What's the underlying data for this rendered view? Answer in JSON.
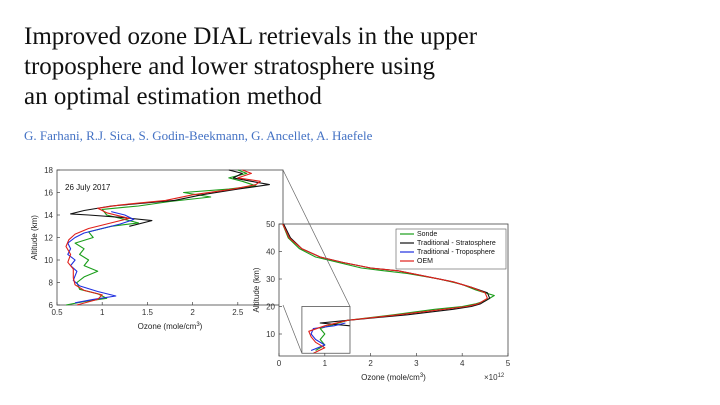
{
  "slide": {
    "title_lines": [
      "Improved ozone DIAL retrievals in the upper",
      "troposphere and lower stratosphere using",
      "an optimal estimation method"
    ],
    "authors": "G. Farhani, R.J. Sica, S. Godin-Beekmann, G. Ancellet, A. Haefele"
  },
  "colors": {
    "Sonde": "#1a9e1a",
    "Traditional - Stratosphere": "#111111",
    "Traditional - Troposphere": "#1f2fe0",
    "OEM": "#e0201a",
    "title": "#111111",
    "authors": "#4472c4"
  },
  "chart_data": [
    {
      "type": "line",
      "annotation": "26 July 2017",
      "xlabel": "Ozone (mole/cm",
      "xlabel_sup": "3",
      "xlabel_end": ")",
      "ylabel": "Altitude (km)",
      "xlim": [
        0.5,
        3.0
      ],
      "ylim": [
        6,
        18
      ],
      "xticks": [
        0.5,
        1,
        1.5,
        2,
        2.5
      ],
      "xtick_labels": [
        "0.5",
        "1",
        "1.5",
        "2",
        "2.5"
      ],
      "yticks": [
        6,
        8,
        10,
        12,
        14,
        16,
        18
      ],
      "ytick_labels": [
        "6",
        "8",
        "10",
        "12",
        "14",
        "16",
        "18"
      ],
      "series": [
        {
          "name": "Sonde",
          "points": [
            [
              0.6,
              6.0
            ],
            [
              0.8,
              6.3
            ],
            [
              1.05,
              6.6
            ],
            [
              0.95,
              7.0
            ],
            [
              0.75,
              7.4
            ],
            [
              0.72,
              8.0
            ],
            [
              0.8,
              8.5
            ],
            [
              0.95,
              9.0
            ],
            [
              0.8,
              9.5
            ],
            [
              0.85,
              10.0
            ],
            [
              0.75,
              10.5
            ],
            [
              0.8,
              11.0
            ],
            [
              0.7,
              11.5
            ],
            [
              0.9,
              12.0
            ],
            [
              0.85,
              12.5
            ],
            [
              1.1,
              13.0
            ],
            [
              1.4,
              13.3
            ],
            [
              1.25,
              13.6
            ],
            [
              1.05,
              14.0
            ],
            [
              1.0,
              14.5
            ],
            [
              1.4,
              14.8
            ],
            [
              1.75,
              15.2
            ],
            [
              2.2,
              15.6
            ],
            [
              1.9,
              16.0
            ],
            [
              2.4,
              16.3
            ],
            [
              2.7,
              16.6
            ],
            [
              2.55,
              17.0
            ],
            [
              2.4,
              17.3
            ],
            [
              2.6,
              17.7
            ],
            [
              2.5,
              18.0
            ]
          ]
        },
        {
          "name": "Traditional - Stratosphere",
          "points": [
            [
              1.3,
              13.0
            ],
            [
              1.55,
              13.5
            ],
            [
              1.2,
              13.8
            ],
            [
              0.85,
              14.0
            ],
            [
              0.65,
              14.1
            ],
            [
              0.8,
              14.4
            ],
            [
              1.1,
              14.8
            ],
            [
              1.8,
              15.3
            ],
            [
              2.1,
              15.8
            ],
            [
              2.5,
              16.3
            ],
            [
              2.85,
              16.7
            ],
            [
              2.65,
              17.0
            ],
            [
              2.45,
              17.3
            ],
            [
              2.55,
              17.7
            ],
            [
              2.4,
              18.0
            ]
          ]
        },
        {
          "name": "Traditional - Troposphere",
          "points": [
            [
              0.7,
              6.2
            ],
            [
              0.9,
              6.5
            ],
            [
              1.15,
              6.8
            ],
            [
              0.95,
              7.2
            ],
            [
              0.75,
              7.7
            ],
            [
              0.68,
              8.2
            ],
            [
              0.72,
              9.0
            ],
            [
              0.65,
              9.5
            ],
            [
              0.7,
              10.0
            ],
            [
              0.62,
              10.5
            ],
            [
              0.65,
              11.0
            ],
            [
              0.62,
              11.5
            ],
            [
              0.7,
              12.0
            ],
            [
              0.8,
              12.4
            ],
            [
              1.0,
              12.8
            ],
            [
              1.2,
              13.2
            ],
            [
              1.35,
              13.6
            ],
            [
              1.25,
              14.0
            ],
            [
              1.1,
              14.3
            ]
          ]
        },
        {
          "name": "OEM",
          "points": [
            [
              0.72,
              6.0
            ],
            [
              0.95,
              6.5
            ],
            [
              1.0,
              6.9
            ],
            [
              0.8,
              7.3
            ],
            [
              0.7,
              7.8
            ],
            [
              0.68,
              8.4
            ],
            [
              0.68,
              9.2
            ],
            [
              0.62,
              9.8
            ],
            [
              0.65,
              10.5
            ],
            [
              0.6,
              11.2
            ],
            [
              0.63,
              11.8
            ],
            [
              0.7,
              12.3
            ],
            [
              0.85,
              12.8
            ],
            [
              1.1,
              13.3
            ],
            [
              1.3,
              13.7
            ],
            [
              1.05,
              14.2
            ],
            [
              0.95,
              14.6
            ],
            [
              1.2,
              14.9
            ],
            [
              1.7,
              15.3
            ],
            [
              2.0,
              15.8
            ],
            [
              2.45,
              16.3
            ],
            [
              2.7,
              16.7
            ],
            [
              2.75,
              17.0
            ],
            [
              2.5,
              17.3
            ],
            [
              2.65,
              17.7
            ],
            [
              2.55,
              18.0
            ]
          ]
        }
      ]
    },
    {
      "type": "line",
      "xlabel": "Ozone (mole/cm",
      "xlabel_sup": "3",
      "xlabel_end": ")",
      "ylabel": "Altitude (km)",
      "x_multiplier": "×10",
      "x_multiplier_exp": "12",
      "xlim": [
        0,
        5
      ],
      "ylim": [
        2,
        50
      ],
      "xticks": [
        0,
        1,
        2,
        3,
        4,
        5
      ],
      "xtick_labels": [
        "0",
        "1",
        "2",
        "3",
        "4",
        "5"
      ],
      "yticks": [
        10,
        20,
        30,
        40,
        50
      ],
      "ytick_labels": [
        "10",
        "20",
        "30",
        "40",
        "50"
      ],
      "legend": [
        "Sonde",
        "Traditional - Stratosphere",
        "Traditional - Troposphere",
        "OEM"
      ],
      "legend_position": "top-right",
      "zoom_box": {
        "x": [
          0.5,
          1.55
        ],
        "y": [
          3,
          20
        ]
      },
      "series": [
        {
          "name": "Sonde",
          "points": [
            [
              0.8,
              4
            ],
            [
              1.0,
              6
            ],
            [
              0.9,
              8
            ],
            [
              1.0,
              10
            ],
            [
              0.9,
              12
            ],
            [
              1.1,
              13
            ],
            [
              1.5,
              15
            ],
            [
              2.5,
              17
            ],
            [
              3.4,
              19
            ],
            [
              4.0,
              20
            ],
            [
              4.3,
              21
            ],
            [
              4.5,
              22
            ],
            [
              4.7,
              24
            ],
            [
              4.5,
              25
            ],
            [
              4.3,
              26
            ],
            [
              4.0,
              28
            ],
            [
              3.5,
              30
            ],
            [
              2.8,
              32
            ],
            [
              2.3,
              33
            ],
            [
              1.8,
              34
            ],
            [
              1.3,
              36
            ],
            [
              0.8,
              38
            ],
            [
              0.45,
              41
            ],
            [
              0.2,
              45
            ],
            [
              0.08,
              50
            ]
          ]
        },
        {
          "name": "Traditional - Stratosphere",
          "points": [
            [
              1.55,
              13
            ],
            [
              0.9,
              14
            ],
            [
              1.5,
              15
            ],
            [
              2.8,
              17
            ],
            [
              3.8,
              19
            ],
            [
              4.2,
              20
            ],
            [
              4.4,
              21
            ],
            [
              4.6,
              23
            ],
            [
              4.55,
              25
            ],
            [
              4.2,
              27
            ],
            [
              3.8,
              29
            ],
            [
              3.2,
              31
            ],
            [
              2.6,
              33
            ],
            [
              2.0,
              34
            ],
            [
              1.4,
              36
            ],
            [
              0.9,
              38
            ],
            [
              0.5,
              41
            ],
            [
              0.25,
              45
            ],
            [
              0.1,
              50
            ]
          ]
        },
        {
          "name": "Traditional - Troposphere",
          "points": [
            [
              0.7,
              4
            ],
            [
              1.0,
              6
            ],
            [
              0.8,
              8
            ],
            [
              0.7,
              10
            ],
            [
              0.75,
              12
            ],
            [
              1.2,
              13
            ],
            [
              1.45,
              14
            ]
          ]
        },
        {
          "name": "OEM",
          "points": [
            [
              0.75,
              3
            ],
            [
              1.0,
              5
            ],
            [
              0.8,
              7
            ],
            [
              0.7,
              9
            ],
            [
              0.65,
              11
            ],
            [
              1.0,
              13
            ],
            [
              1.5,
              15
            ],
            [
              2.6,
              17
            ],
            [
              3.6,
              19
            ],
            [
              4.1,
              20
            ],
            [
              4.35,
              21
            ],
            [
              4.55,
              23
            ],
            [
              4.5,
              25
            ],
            [
              4.2,
              27
            ],
            [
              3.8,
              29
            ],
            [
              3.2,
              31
            ],
            [
              2.6,
              33
            ],
            [
              2.0,
              34
            ],
            [
              1.4,
              36
            ],
            [
              0.9,
              38
            ],
            [
              0.5,
              41
            ],
            [
              0.22,
              45
            ],
            [
              0.08,
              50
            ]
          ]
        }
      ]
    }
  ]
}
